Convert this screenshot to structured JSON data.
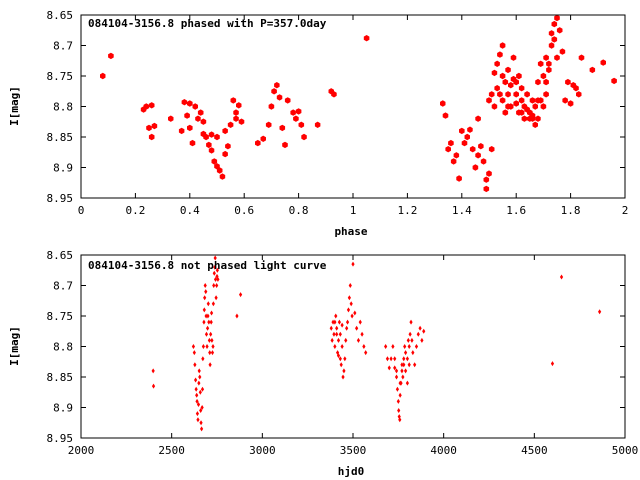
{
  "chart_data": [
    {
      "type": "scatter",
      "title": "084104-3156.8 phased with P=357.0day",
      "xlabel": "phase",
      "ylabel": "I[mag]",
      "xlim": [
        0,
        2
      ],
      "ylim": [
        8.65,
        8.95
      ],
      "y_inverted": true,
      "x_ticks": [
        "0",
        "0.2",
        "0.4",
        "0.6",
        "0.8",
        "1",
        "1.2",
        "1.4",
        "1.6",
        "1.8",
        "2"
      ],
      "y_ticks": [
        "8.65",
        "8.7",
        "8.75",
        "8.8",
        "8.85",
        "8.9",
        "8.95"
      ],
      "color": "#ff0000",
      "marker": "hexagon",
      "points": [
        [
          0.08,
          8.75
        ],
        [
          0.11,
          8.717
        ],
        [
          0.23,
          8.805
        ],
        [
          0.24,
          8.8
        ],
        [
          0.25,
          8.835
        ],
        [
          0.26,
          8.798
        ],
        [
          0.27,
          8.832
        ],
        [
          0.26,
          8.85
        ],
        [
          0.33,
          8.82
        ],
        [
          0.37,
          8.84
        ],
        [
          0.38,
          8.793
        ],
        [
          0.39,
          8.815
        ],
        [
          0.4,
          8.795
        ],
        [
          0.4,
          8.835
        ],
        [
          0.41,
          8.86
        ],
        [
          0.42,
          8.8
        ],
        [
          0.43,
          8.82
        ],
        [
          0.44,
          8.81
        ],
        [
          0.45,
          8.825
        ],
        [
          0.45,
          8.845
        ],
        [
          0.46,
          8.85
        ],
        [
          0.47,
          8.863
        ],
        [
          0.48,
          8.846
        ],
        [
          0.48,
          8.872
        ],
        [
          0.49,
          8.89
        ],
        [
          0.5,
          8.898
        ],
        [
          0.5,
          8.85
        ],
        [
          0.51,
          8.905
        ],
        [
          0.52,
          8.915
        ],
        [
          0.53,
          8.84
        ],
        [
          0.54,
          8.865
        ],
        [
          0.53,
          8.878
        ],
        [
          0.55,
          8.83
        ],
        [
          0.56,
          8.79
        ],
        [
          0.57,
          8.82
        ],
        [
          0.57,
          8.81
        ],
        [
          0.58,
          8.798
        ],
        [
          0.59,
          8.825
        ],
        [
          0.65,
          8.86
        ],
        [
          0.67,
          8.853
        ],
        [
          0.69,
          8.83
        ],
        [
          0.7,
          8.8
        ],
        [
          0.71,
          8.775
        ],
        [
          0.72,
          8.765
        ],
        [
          0.73,
          8.785
        ],
        [
          0.74,
          8.835
        ],
        [
          0.75,
          8.863
        ],
        [
          0.76,
          8.79
        ],
        [
          0.78,
          8.81
        ],
        [
          0.79,
          8.82
        ],
        [
          0.8,
          8.808
        ],
        [
          0.81,
          8.83
        ],
        [
          0.82,
          8.85
        ],
        [
          0.87,
          8.83
        ],
        [
          0.92,
          8.775
        ],
        [
          0.93,
          8.78
        ],
        [
          1.05,
          8.688
        ],
        [
          1.33,
          8.795
        ],
        [
          1.34,
          8.815
        ],
        [
          1.35,
          8.87
        ],
        [
          1.36,
          8.86
        ],
        [
          1.37,
          8.89
        ],
        [
          1.38,
          8.88
        ],
        [
          1.39,
          8.918
        ],
        [
          1.4,
          8.84
        ],
        [
          1.41,
          8.86
        ],
        [
          1.42,
          8.85
        ],
        [
          1.43,
          8.838
        ],
        [
          1.44,
          8.87
        ],
        [
          1.45,
          8.9
        ],
        [
          1.46,
          8.88
        ],
        [
          1.46,
          8.82
        ],
        [
          1.47,
          8.865
        ],
        [
          1.48,
          8.89
        ],
        [
          1.49,
          8.92
        ],
        [
          1.49,
          8.935
        ],
        [
          1.5,
          8.79
        ],
        [
          1.5,
          8.91
        ],
        [
          1.51,
          8.87
        ],
        [
          1.51,
          8.78
        ],
        [
          1.52,
          8.745
        ],
        [
          1.52,
          8.8
        ],
        [
          1.53,
          8.73
        ],
        [
          1.53,
          8.77
        ],
        [
          1.54,
          8.78
        ],
        [
          1.54,
          8.715
        ],
        [
          1.55,
          8.75
        ],
        [
          1.55,
          8.79
        ],
        [
          1.56,
          8.76
        ],
        [
          1.56,
          8.81
        ],
        [
          1.57,
          8.74
        ],
        [
          1.57,
          8.78
        ],
        [
          1.58,
          8.765
        ],
        [
          1.58,
          8.8
        ],
        [
          1.59,
          8.72
        ],
        [
          1.59,
          8.755
        ],
        [
          1.6,
          8.78
        ],
        [
          1.6,
          8.795
        ],
        [
          1.61,
          8.75
        ],
        [
          1.61,
          8.81
        ],
        [
          1.62,
          8.77
        ],
        [
          1.62,
          8.79
        ],
        [
          1.63,
          8.8
        ],
        [
          1.63,
          8.82
        ],
        [
          1.64,
          8.78
        ],
        [
          1.64,
          8.805
        ],
        [
          1.65,
          8.81
        ],
        [
          1.65,
          8.82
        ],
        [
          1.66,
          8.815
        ],
        [
          1.66,
          8.79
        ],
        [
          1.67,
          8.8
        ],
        [
          1.67,
          8.83
        ],
        [
          1.68,
          8.76
        ],
        [
          1.68,
          8.82
        ],
        [
          1.69,
          8.79
        ],
        [
          1.69,
          8.73
        ],
        [
          1.7,
          8.75
        ],
        [
          1.7,
          8.8
        ],
        [
          1.71,
          8.78
        ],
        [
          1.71,
          8.72
        ],
        [
          1.72,
          8.74
        ],
        [
          1.73,
          8.7
        ],
        [
          1.73,
          8.68
        ],
        [
          1.74,
          8.665
        ],
        [
          1.74,
          8.69
        ],
        [
          1.75,
          8.655
        ],
        [
          1.75,
          8.72
        ],
        [
          1.76,
          8.675
        ],
        [
          1.77,
          8.71
        ],
        [
          1.78,
          8.79
        ],
        [
          1.79,
          8.76
        ],
        [
          1.8,
          8.795
        ],
        [
          1.81,
          8.765
        ],
        [
          1.82,
          8.77
        ],
        [
          1.83,
          8.78
        ],
        [
          1.84,
          8.72
        ],
        [
          1.88,
          8.74
        ],
        [
          1.92,
          8.728
        ],
        [
          1.96,
          8.758
        ],
        [
          1.55,
          8.7
        ],
        [
          1.57,
          8.8
        ],
        [
          1.6,
          8.76
        ],
        [
          1.62,
          8.81
        ],
        [
          1.66,
          8.82
        ],
        [
          1.68,
          8.79
        ],
        [
          1.71,
          8.76
        ],
        [
          1.72,
          8.73
        ]
      ]
    },
    {
      "type": "scatter",
      "title": "084104-3156.8 not phased light curve",
      "xlabel": "hjd0",
      "ylabel": "I[mag]",
      "xlim": [
        2000,
        5000
      ],
      "ylim": [
        8.65,
        8.95
      ],
      "y_inverted": true,
      "x_ticks": [
        "2000",
        "2500",
        "3000",
        "3500",
        "4000",
        "4500",
        "5000"
      ],
      "y_ticks": [
        "8.65",
        "8.7",
        "8.75",
        "8.8",
        "8.85",
        "8.9",
        "8.95"
      ],
      "color": "#ff0000",
      "marker": "diamond",
      "points": [
        [
          2398,
          8.84
        ],
        [
          2400,
          8.865
        ],
        [
          2620,
          8.8
        ],
        [
          2625,
          8.81
        ],
        [
          2628,
          8.83
        ],
        [
          2632,
          8.855
        ],
        [
          2635,
          8.87
        ],
        [
          2638,
          8.88
        ],
        [
          2640,
          8.89
        ],
        [
          2642,
          8.91
        ],
        [
          2645,
          8.92
        ],
        [
          2648,
          8.895
        ],
        [
          2650,
          8.86
        ],
        [
          2652,
          8.84
        ],
        [
          2655,
          8.85
        ],
        [
          2658,
          8.875
        ],
        [
          2660,
          8.905
        ],
        [
          2662,
          8.925
        ],
        [
          2665,
          8.935
        ],
        [
          2668,
          8.9
        ],
        [
          2670,
          8.87
        ],
        [
          2672,
          8.82
        ],
        [
          2675,
          8.8
        ],
        [
          2678,
          8.76
        ],
        [
          2680,
          8.74
        ],
        [
          2682,
          8.72
        ],
        [
          2685,
          8.7
        ],
        [
          2688,
          8.71
        ],
        [
          2690,
          8.75
        ],
        [
          2692,
          8.78
        ],
        [
          2695,
          8.8
        ],
        [
          2698,
          8.77
        ],
        [
          2700,
          8.75
        ],
        [
          2702,
          8.73
        ],
        [
          2705,
          8.76
        ],
        [
          2708,
          8.79
        ],
        [
          2710,
          8.81
        ],
        [
          2712,
          8.83
        ],
        [
          2715,
          8.78
        ],
        [
          2718,
          8.76
        ],
        [
          2720,
          8.745
        ],
        [
          2722,
          8.79
        ],
        [
          2725,
          8.81
        ],
        [
          2728,
          8.8
        ],
        [
          2730,
          8.73
        ],
        [
          2732,
          8.7
        ],
        [
          2735,
          8.68
        ],
        [
          2738,
          8.67
        ],
        [
          2740,
          8.655
        ],
        [
          2742,
          8.69
        ],
        [
          2745,
          8.72
        ],
        [
          2748,
          8.7
        ],
        [
          2750,
          8.685
        ],
        [
          2752,
          8.675
        ],
        [
          2755,
          8.69
        ],
        [
          2860,
          8.75
        ],
        [
          2880,
          8.715
        ],
        [
          3380,
          8.77
        ],
        [
          3385,
          8.79
        ],
        [
          3390,
          8.76
        ],
        [
          3395,
          8.78
        ],
        [
          3400,
          8.8
        ],
        [
          3405,
          8.75
        ],
        [
          3410,
          8.77
        ],
        [
          3415,
          8.81
        ],
        [
          3420,
          8.79
        ],
        [
          3425,
          8.76
        ],
        [
          3430,
          8.82
        ],
        [
          3435,
          8.83
        ],
        [
          3440,
          8.8
        ],
        [
          3445,
          8.85
        ],
        [
          3450,
          8.84
        ],
        [
          3455,
          8.82
        ],
        [
          3460,
          8.79
        ],
        [
          3465,
          8.77
        ],
        [
          3470,
          8.76
        ],
        [
          3475,
          8.74
        ],
        [
          3480,
          8.72
        ],
        [
          3485,
          8.7
        ],
        [
          3490,
          8.73
        ],
        [
          3495,
          8.75
        ],
        [
          3500,
          8.665
        ],
        [
          3510,
          8.745
        ],
        [
          3520,
          8.77
        ],
        [
          3530,
          8.79
        ],
        [
          3540,
          8.76
        ],
        [
          3550,
          8.78
        ],
        [
          3560,
          8.8
        ],
        [
          3570,
          8.81
        ],
        [
          3400,
          8.76
        ],
        [
          3410,
          8.78
        ],
        [
          3420,
          8.815
        ],
        [
          3430,
          8.78
        ],
        [
          3440,
          8.765
        ],
        [
          3680,
          8.8
        ],
        [
          3690,
          8.82
        ],
        [
          3700,
          8.835
        ],
        [
          3710,
          8.82
        ],
        [
          3720,
          8.8
        ],
        [
          3730,
          8.835
        ],
        [
          3740,
          8.85
        ],
        [
          3745,
          8.87
        ],
        [
          3750,
          8.89
        ],
        [
          3752,
          8.905
        ],
        [
          3755,
          8.915
        ],
        [
          3758,
          8.92
        ],
        [
          3760,
          8.88
        ],
        [
          3765,
          8.86
        ],
        [
          3770,
          8.84
        ],
        [
          3775,
          8.85
        ],
        [
          3780,
          8.83
        ],
        [
          3785,
          8.8
        ],
        [
          3790,
          8.81
        ],
        [
          3800,
          8.82
        ],
        [
          3805,
          8.79
        ],
        [
          3810,
          8.8
        ],
        [
          3815,
          8.78
        ],
        [
          3820,
          8.76
        ],
        [
          3825,
          8.79
        ],
        [
          3830,
          8.81
        ],
        [
          3840,
          8.83
        ],
        [
          3850,
          8.8
        ],
        [
          3860,
          8.78
        ],
        [
          3870,
          8.77
        ],
        [
          3880,
          8.79
        ],
        [
          3890,
          8.775
        ],
        [
          3730,
          8.82
        ],
        [
          3740,
          8.84
        ],
        [
          3760,
          8.86
        ],
        [
          3770,
          8.83
        ],
        [
          3780,
          8.82
        ],
        [
          3790,
          8.84
        ],
        [
          3800,
          8.86
        ],
        [
          3810,
          8.83
        ],
        [
          4600,
          8.828
        ],
        [
          4650,
          8.686
        ],
        [
          4860,
          8.743
        ]
      ]
    }
  ]
}
